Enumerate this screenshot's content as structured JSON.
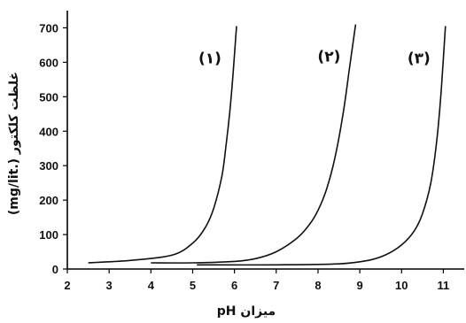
{
  "chart_data": {
    "type": "line",
    "xlabel": "میزان pH",
    "ylabel": "غلظت کلکتور (.mg/lit)",
    "xlim": [
      2,
      11.5
    ],
    "ylim": [
      0,
      750
    ],
    "xticks": [
      2,
      3,
      4,
      5,
      6,
      7,
      8,
      9,
      10,
      11
    ],
    "yticks": [
      0,
      100,
      200,
      300,
      400,
      500,
      600,
      700
    ],
    "grid": false,
    "series": [
      {
        "name": "(۱)",
        "x": [
          2.5,
          3.5,
          4.5,
          5.0,
          5.3,
          5.5,
          5.7,
          5.8,
          5.9,
          6.0,
          6.05
        ],
        "y": [
          18,
          25,
          40,
          75,
          120,
          175,
          270,
          360,
          470,
          620,
          705
        ]
      },
      {
        "name": "(۲)",
        "x": [
          4.0,
          5.0,
          6.0,
          6.5,
          7.0,
          7.5,
          7.8,
          8.0,
          8.2,
          8.4,
          8.6,
          8.75,
          8.9
        ],
        "y": [
          18,
          18,
          22,
          30,
          50,
          90,
          130,
          170,
          230,
          320,
          450,
          580,
          710
        ]
      },
      {
        "name": "(۳)",
        "x": [
          5.1,
          7.0,
          8.5,
          9.2,
          9.6,
          10.0,
          10.3,
          10.5,
          10.7,
          10.85,
          10.95,
          11.05
        ],
        "y": [
          12,
          12,
          15,
          25,
          40,
          70,
          110,
          160,
          250,
          380,
          520,
          705
        ]
      }
    ]
  }
}
